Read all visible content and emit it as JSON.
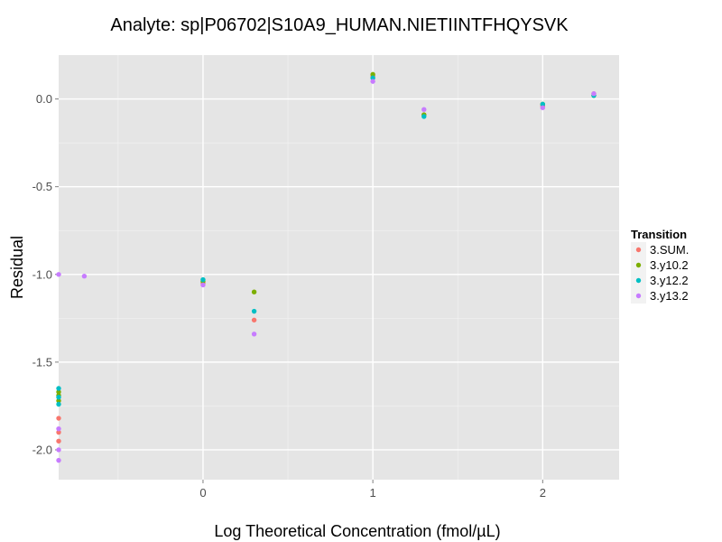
{
  "chart_data": {
    "type": "scatter",
    "title": "Analyte: sp|P06702|S10A9_HUMAN.NIETIINTFHQYSVK",
    "xlabel": "Log Theoretical Concentration (fmol/µL)",
    "ylabel": "Residual",
    "xlim": [
      -0.85,
      2.45
    ],
    "ylim": [
      -2.17,
      0.25
    ],
    "x_ticks": [
      0,
      1,
      2
    ],
    "x_tick_labels": [
      "0",
      "1",
      "2"
    ],
    "y_ticks": [
      0.0,
      -0.5,
      -1.0,
      -1.5,
      -2.0
    ],
    "y_tick_labels": [
      "0.0",
      "-0.5",
      "-1.0",
      "-1.5",
      "-2.0"
    ],
    "grid": true,
    "legend": {
      "title": "Transition",
      "position": "right"
    },
    "series": [
      {
        "name": "3.SUM.",
        "color": "#F8766D",
        "points": [
          {
            "x": -0.85,
            "y": -1.82
          },
          {
            "x": -0.85,
            "y": -1.9
          },
          {
            "x": -0.85,
            "y": -1.95
          },
          {
            "x": 0,
            "y": -1.05
          },
          {
            "x": 0.301,
            "y": -1.26
          },
          {
            "x": 1,
            "y": 0.13
          },
          {
            "x": 1.301,
            "y": -0.09
          },
          {
            "x": 2,
            "y": -0.04
          },
          {
            "x": 2.301,
            "y": 0.03
          }
        ]
      },
      {
        "name": "3.y10.2",
        "color": "#7CAE00",
        "points": [
          {
            "x": -0.85,
            "y": -1.67
          },
          {
            "x": -0.85,
            "y": -1.69
          },
          {
            "x": -0.85,
            "y": -1.72
          },
          {
            "x": 0,
            "y": -1.04
          },
          {
            "x": 0.301,
            "y": -1.1
          },
          {
            "x": 1,
            "y": 0.14
          },
          {
            "x": 1.301,
            "y": -0.09
          },
          {
            "x": 2,
            "y": -0.03
          },
          {
            "x": 2.301,
            "y": 0.02
          }
        ]
      },
      {
        "name": "3.y12.2",
        "color": "#00BFC4",
        "points": [
          {
            "x": -0.85,
            "y": -1.65
          },
          {
            "x": -0.85,
            "y": -1.7
          },
          {
            "x": -0.85,
            "y": -1.74
          },
          {
            "x": 0,
            "y": -1.03
          },
          {
            "x": 0.301,
            "y": -1.21
          },
          {
            "x": 1,
            "y": 0.12
          },
          {
            "x": 1.301,
            "y": -0.1
          },
          {
            "x": 2,
            "y": -0.03
          },
          {
            "x": 2.301,
            "y": 0.02
          }
        ]
      },
      {
        "name": "3.y13.2",
        "color": "#C77CFF",
        "points": [
          {
            "x": -0.85,
            "y": -1.0
          },
          {
            "x": -0.699,
            "y": -1.01
          },
          {
            "x": -0.85,
            "y": -1.88
          },
          {
            "x": -0.85,
            "y": -2.0
          },
          {
            "x": -0.85,
            "y": -2.06
          },
          {
            "x": 0,
            "y": -1.06
          },
          {
            "x": 0.301,
            "y": -1.34
          },
          {
            "x": 1,
            "y": 0.1
          },
          {
            "x": 1.301,
            "y": -0.06
          },
          {
            "x": 2,
            "y": -0.05
          },
          {
            "x": 2.301,
            "y": 0.03
          }
        ]
      }
    ]
  }
}
